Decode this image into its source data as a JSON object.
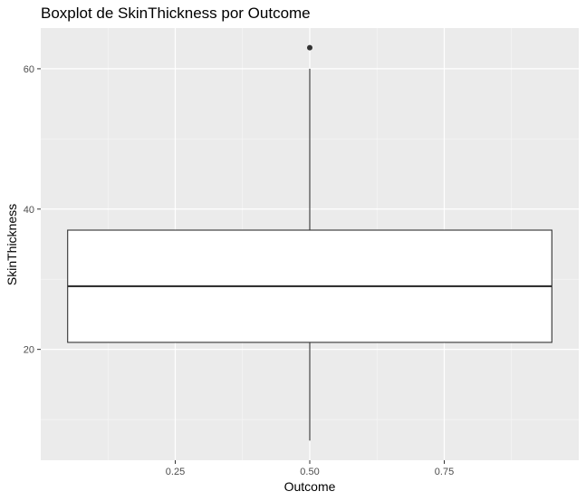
{
  "chart_data": {
    "type": "boxplot",
    "title": "Boxplot de SkinThickness por Outcome",
    "xlabel": "Outcome",
    "ylabel": "SkinThickness",
    "x_ticks": [
      {
        "value": 0.25,
        "label": "0.25"
      },
      {
        "value": 0.5,
        "label": "0.50"
      },
      {
        "value": 0.75,
        "label": "0.75"
      }
    ],
    "y_ticks": [
      {
        "value": 20,
        "label": "20"
      },
      {
        "value": 40,
        "label": "40"
      },
      {
        "value": 60,
        "label": "60"
      }
    ],
    "xlim": [
      0.0,
      1.0
    ],
    "ylim": [
      4.2,
      65.8
    ],
    "grid": true,
    "box": {
      "x_center": 0.5,
      "x_left": 0.05,
      "x_right": 0.95,
      "whisker_low": 7,
      "q1": 21,
      "median": 29,
      "q3": 37,
      "whisker_high": 60,
      "outliers": [
        63
      ]
    },
    "colors": {
      "panel_background": "#ebebeb",
      "grid_major": "#ffffff",
      "grid_minor": "#f5f5f5",
      "box_fill": "#ffffff",
      "box_line": "#333333",
      "tick_mark": "#333333"
    }
  }
}
